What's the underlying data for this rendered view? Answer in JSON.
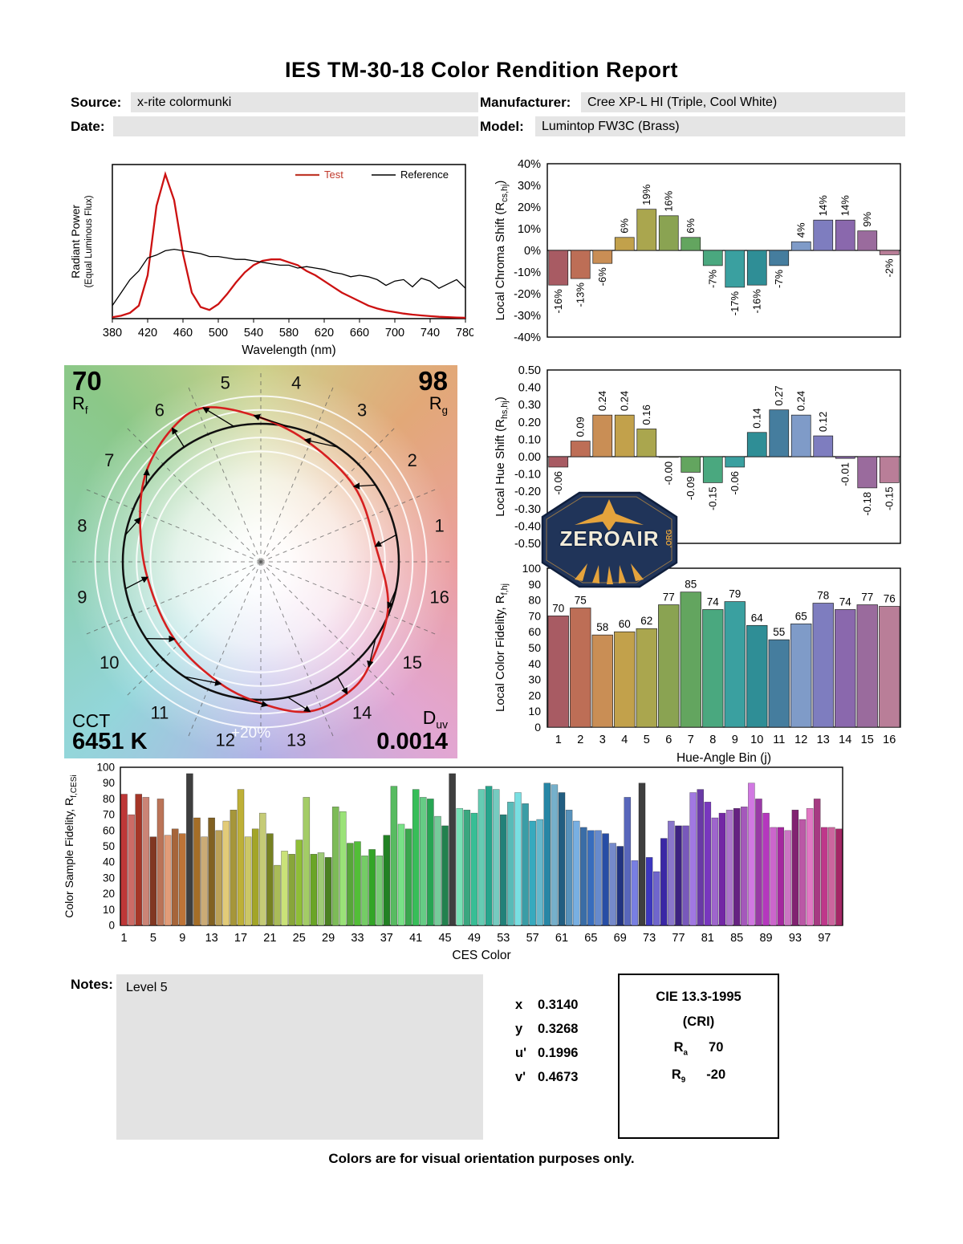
{
  "page": {
    "title": "IES TM-30-18 Color Rendition Report",
    "footer": "Colors are for visual orientation purposes only."
  },
  "header": {
    "source_label": "Source:",
    "source_value": "x-rite colormunki",
    "manufacturer_label": "Manufacturer:",
    "manufacturer_value": "Cree XP-L HI (Triple, Cool White)",
    "date_label": "Date:",
    "date_value": "",
    "model_label": "Model:",
    "model_value": "Lumintop FW3C (Brass)"
  },
  "notes": {
    "label": "Notes:",
    "value": "Level 5"
  },
  "chromaticity": {
    "rows": [
      {
        "label": "x",
        "value": "0.3140"
      },
      {
        "label": "y",
        "value": "0.3268"
      },
      {
        "label": "u'",
        "value": "0.1996"
      },
      {
        "label": "v'",
        "value": "0.4673"
      }
    ]
  },
  "cie_box": {
    "title": "CIE 13.3-1995",
    "subtitle": "(CRI)",
    "ra": {
      "base": "R",
      "sub": "a",
      "value": "70"
    },
    "r9": {
      "base": "R",
      "sub": "9",
      "value": "-20"
    }
  },
  "watermark": {
    "name": "ZEROAIR",
    "suffix": ".ORG"
  },
  "color_vector": {
    "rf_value": "70",
    "rf_base": "R",
    "rf_sub": "f",
    "rg_value": "98",
    "rg_base": "R",
    "rg_sub": "g",
    "cct_label": "CCT",
    "cct_value": "6451 K",
    "duv_base": "D",
    "duv_sub": "uv",
    "duv_value": "0.0014",
    "ring_label": "+20%",
    "bin_labels": [
      "1",
      "2",
      "3",
      "4",
      "5",
      "6",
      "7",
      "8",
      "9",
      "10",
      "11",
      "12",
      "13",
      "14",
      "15",
      "16"
    ]
  },
  "hue_bin_colors": [
    "#a85b63",
    "#bd6e56",
    "#c98e55",
    "#c2a14b",
    "#aaa64e",
    "#8aa352",
    "#63a55f",
    "#4aa87f",
    "#3aa0a0",
    "#2f8e96",
    "#457d9e",
    "#7f9bc8",
    "#7e7dbf",
    "#8a68ad",
    "#9a6b9d",
    "#b97e98"
  ],
  "chart_data": [
    {
      "id": "spd",
      "type": "line",
      "xlabel": "Wavelength (nm)",
      "ylabel_line1": "Radiant Power",
      "ylabel_line2": "(Equal Luminous Flux)",
      "xlim": [
        380,
        780
      ],
      "xticks": [
        380,
        420,
        460,
        500,
        540,
        580,
        620,
        660,
        700,
        740,
        780
      ],
      "legend": [
        {
          "label": "Test",
          "color": "#c0392b"
        },
        {
          "label": "Reference",
          "color": "#000000"
        }
      ],
      "series": [
        {
          "name": "Test",
          "color": "#cc1111",
          "x": [
            380,
            390,
            400,
            410,
            420,
            430,
            440,
            450,
            460,
            470,
            480,
            490,
            500,
            510,
            520,
            530,
            540,
            550,
            560,
            570,
            580,
            590,
            600,
            610,
            620,
            630,
            640,
            650,
            660,
            670,
            680,
            690,
            700,
            710,
            720,
            730,
            740,
            750,
            760,
            770,
            780
          ],
          "y": [
            0.01,
            0.02,
            0.04,
            0.09,
            0.3,
            0.78,
            1.0,
            0.82,
            0.45,
            0.18,
            0.08,
            0.06,
            0.1,
            0.17,
            0.25,
            0.32,
            0.37,
            0.4,
            0.41,
            0.41,
            0.39,
            0.37,
            0.33,
            0.3,
            0.26,
            0.22,
            0.18,
            0.15,
            0.12,
            0.09,
            0.07,
            0.055,
            0.045,
            0.035,
            0.028,
            0.022,
            0.017,
            0.013,
            0.01,
            0.008,
            0.006
          ]
        },
        {
          "name": "Reference",
          "color": "#000000",
          "x": [
            380,
            390,
            400,
            410,
            420,
            430,
            440,
            450,
            460,
            470,
            480,
            490,
            500,
            510,
            520,
            530,
            540,
            550,
            560,
            570,
            580,
            590,
            600,
            610,
            620,
            630,
            640,
            650,
            660,
            670,
            680,
            690,
            700,
            710,
            720,
            730,
            740,
            750,
            760,
            770,
            780
          ],
          "y": [
            0.09,
            0.18,
            0.27,
            0.33,
            0.42,
            0.44,
            0.47,
            0.48,
            0.47,
            0.46,
            0.45,
            0.43,
            0.43,
            0.42,
            0.41,
            0.41,
            0.4,
            0.39,
            0.38,
            0.37,
            0.37,
            0.35,
            0.36,
            0.35,
            0.34,
            0.32,
            0.31,
            0.29,
            0.3,
            0.29,
            0.27,
            0.23,
            0.26,
            0.27,
            0.22,
            0.28,
            0.26,
            0.21,
            0.24,
            0.27,
            0.21
          ]
        }
      ]
    },
    {
      "id": "chroma_shift",
      "type": "bar",
      "ylabel": {
        "pre": "Local Chroma Shift (R",
        "sub": "cs,hj",
        "post": ")"
      },
      "ylim": [
        -40,
        40
      ],
      "ytick_values": [
        40,
        30,
        20,
        10,
        0,
        -10,
        -20,
        -30,
        -40
      ],
      "ytick_labels": [
        "40%",
        "30%",
        "20%",
        "10%",
        "0%",
        "-10%",
        "-20%",
        "-30%",
        "-40%"
      ],
      "values": [
        -16,
        -13,
        -6,
        6,
        19,
        16,
        6,
        -7,
        -17,
        -16,
        -7,
        4,
        14,
        14,
        9,
        -2
      ],
      "bar_labels": [
        "-16%",
        "-13%",
        "-6%",
        "6%",
        "19%",
        "16%",
        "6%",
        "-7%",
        "-17%",
        "-16%",
        "-7%",
        "4%",
        "14%",
        "14%",
        "9%",
        "-2%"
      ]
    },
    {
      "id": "hue_shift",
      "type": "bar",
      "ylabel": {
        "pre": "Local Hue Shift (R",
        "sub": "hs,hj",
        "post": ")"
      },
      "ylim": [
        -0.5,
        0.5
      ],
      "ytick_values": [
        0.5,
        0.4,
        0.3,
        0.2,
        0.1,
        0,
        -0.1,
        -0.2,
        -0.3,
        -0.4,
        -0.5
      ],
      "ytick_labels": [
        "0.50",
        "0.40",
        "0.30",
        "0.20",
        "0.10",
        "0.00",
        "-0.10",
        "-0.20",
        "-0.30",
        "-0.40",
        "-0.50"
      ],
      "values": [
        -0.06,
        0.09,
        0.24,
        0.24,
        0.16,
        -0.004,
        -0.09,
        -0.15,
        -0.06,
        0.14,
        0.27,
        0.24,
        0.12,
        -0.01,
        -0.18,
        -0.15
      ],
      "bar_labels": [
        "-0.06",
        "0.09",
        "0.24",
        "0.24",
        "0.16",
        "-0.00",
        "-0.09",
        "-0.15",
        "-0.06",
        "0.14",
        "0.27",
        "0.24",
        "0.12",
        "-0.01",
        "-0.18",
        "-0.15"
      ]
    },
    {
      "id": "local_fidelity",
      "type": "bar",
      "ylabel": {
        "pre": "Local Color Fidelity, R",
        "sub": "f,hj",
        "post": ""
      },
      "xlabel": "Hue-Angle Bin (j)",
      "ylim": [
        0,
        100
      ],
      "ytick_values": [
        0,
        10,
        20,
        30,
        40,
        50,
        60,
        70,
        80,
        90,
        100
      ],
      "categories": [
        "1",
        "2",
        "3",
        "4",
        "5",
        "6",
        "7",
        "8",
        "9",
        "10",
        "11",
        "12",
        "13",
        "14",
        "15",
        "16"
      ],
      "values": [
        70,
        75,
        58,
        60,
        62,
        77,
        85,
        74,
        79,
        64,
        55,
        65,
        78,
        74,
        77,
        76
      ]
    },
    {
      "id": "ces",
      "type": "bar",
      "ylabel": {
        "pre": "Color Sample Fidelity, R",
        "sub": "f,CESi",
        "post": ""
      },
      "xlabel": "CES Color",
      "ylim": [
        0,
        100
      ],
      "ytick_values": [
        0,
        10,
        20,
        30,
        40,
        50,
        60,
        70,
        80,
        90,
        100
      ],
      "xtick_values": [
        1,
        5,
        9,
        13,
        17,
        21,
        25,
        29,
        33,
        37,
        41,
        45,
        49,
        53,
        57,
        61,
        65,
        69,
        73,
        77,
        81,
        85,
        89,
        93,
        97
      ],
      "values": [
        83,
        70,
        83,
        81,
        56,
        80,
        57,
        61,
        58,
        96,
        68,
        56,
        68,
        60,
        66,
        73,
        86,
        56,
        61,
        71,
        58,
        38,
        47,
        45,
        54,
        81,
        45,
        46,
        43,
        75,
        72,
        52,
        53,
        44,
        48,
        44,
        57,
        88,
        64,
        61,
        86,
        81,
        80,
        69,
        63,
        96,
        74,
        73,
        71,
        86,
        88,
        86,
        70,
        78,
        84,
        77,
        66,
        67,
        90,
        89,
        84,
        73,
        66,
        62,
        60,
        60,
        58,
        52,
        50,
        81,
        41,
        90,
        43,
        34,
        55,
        66,
        63,
        63,
        84,
        86,
        78,
        68,
        71,
        73,
        74,
        75,
        90,
        80,
        71,
        62,
        62,
        60,
        73,
        67,
        74,
        80,
        62,
        62,
        61
      ]
    }
  ]
}
